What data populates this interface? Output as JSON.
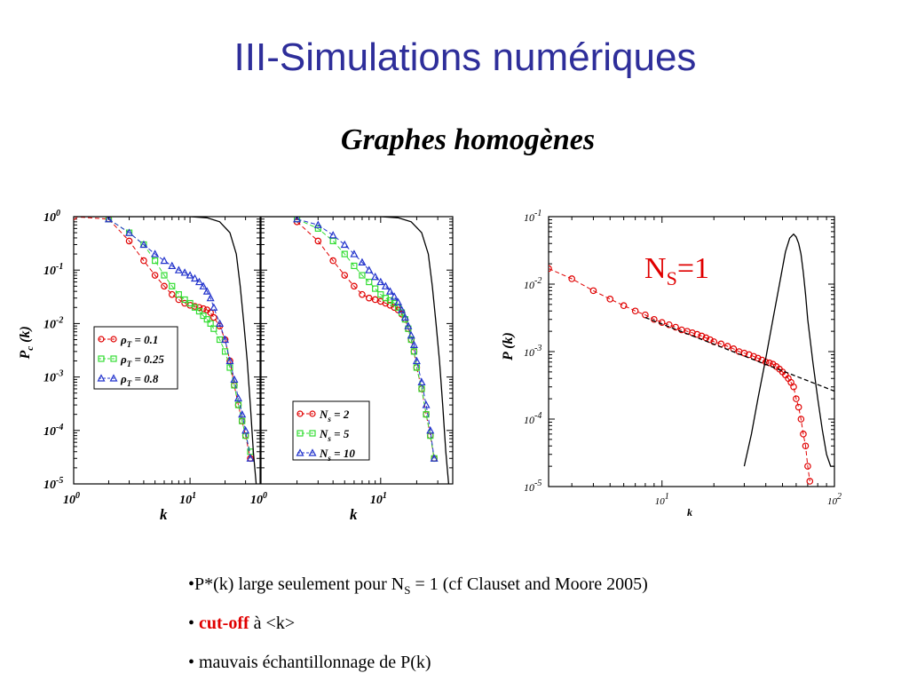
{
  "header": {
    "title": "III-Simulations numériques",
    "subtitle": "Graphes homogènes"
  },
  "colors": {
    "title": "#2e2e9a",
    "red": "#e00000",
    "green": "#33dd33",
    "blue": "#2233cc",
    "black": "#000000"
  },
  "chart_data": [
    {
      "type": "line",
      "panel": "left-a",
      "scale": "log-log",
      "ylabel": "P_c (k)",
      "xlabel": "k",
      "xlim": [
        1,
        40
      ],
      "ylim": [
        1e-05,
        1
      ],
      "x_ticks": [
        "10^0",
        "10^1"
      ],
      "y_ticks": [
        "10^0",
        "10^-1",
        "10^-2",
        "10^-3",
        "10^-4",
        "10^-5"
      ],
      "legend": [
        "ρ_T = 0.1",
        "ρ_T = 0.25",
        "ρ_T = 0.8"
      ],
      "legend_position": "middle-left",
      "series": [
        {
          "name": "ρ_T = 0.1",
          "color": "red",
          "marker": "circle",
          "x": [
            1,
            2,
            3,
            4,
            5,
            6,
            7,
            8,
            9,
            10,
            11,
            12,
            13,
            14,
            15,
            16,
            18,
            20,
            22,
            24,
            26,
            28,
            30,
            33
          ],
          "y": [
            1,
            0.9,
            0.35,
            0.15,
            0.08,
            0.05,
            0.035,
            0.028,
            0.024,
            0.022,
            0.021,
            0.02,
            0.019,
            0.018,
            0.016,
            0.013,
            0.009,
            0.005,
            0.002,
            0.0007,
            0.0003,
            0.00015,
            8e-05,
            3e-05
          ]
        },
        {
          "name": "ρ_T = 0.25",
          "color": "green",
          "marker": "square",
          "x": [
            2,
            3,
            4,
            5,
            6,
            7,
            8,
            9,
            10,
            11,
            12,
            13,
            14,
            15,
            16,
            18,
            20,
            22,
            24,
            26,
            28,
            30,
            33
          ],
          "y": [
            0.9,
            0.5,
            0.3,
            0.15,
            0.08,
            0.05,
            0.035,
            0.028,
            0.024,
            0.02,
            0.017,
            0.014,
            0.012,
            0.01,
            0.008,
            0.005,
            0.003,
            0.0015,
            0.0007,
            0.0003,
            0.00015,
            8e-05,
            4e-05
          ]
        },
        {
          "name": "ρ_T = 0.8",
          "color": "blue",
          "marker": "triangle",
          "x": [
            2,
            3,
            4,
            5,
            6,
            7,
            8,
            9,
            10,
            11,
            12,
            13,
            14,
            15,
            16,
            18,
            20,
            22,
            24,
            26,
            28,
            30,
            33
          ],
          "y": [
            0.9,
            0.5,
            0.3,
            0.2,
            0.15,
            0.12,
            0.1,
            0.09,
            0.08,
            0.07,
            0.06,
            0.05,
            0.04,
            0.03,
            0.02,
            0.01,
            0.005,
            0.002,
            0.0009,
            0.0004,
            0.0002,
            0.0001,
            3e-05
          ]
        },
        {
          "name": "",
          "color": "black",
          "marker": "none",
          "x": [
            1,
            10,
            14,
            18,
            22,
            25,
            27,
            29,
            31,
            33,
            35,
            37
          ],
          "y": [
            1,
            1,
            0.95,
            0.8,
            0.5,
            0.2,
            0.05,
            0.01,
            0.002,
            0.0003,
            4e-05,
            1e-05
          ]
        }
      ]
    },
    {
      "type": "line",
      "panel": "left-b",
      "scale": "log-log",
      "xlabel": "k",
      "xlim": [
        1,
        40
      ],
      "ylim": [
        1e-05,
        1
      ],
      "x_ticks": [
        "10^0",
        "10^1"
      ],
      "legend": [
        "N_s = 2",
        "N_s = 5",
        "N_s = 10"
      ],
      "legend_position": "bottom-left",
      "series": [
        {
          "name": "N_s = 2",
          "color": "red",
          "marker": "circle",
          "x": [
            2,
            3,
            4,
            5,
            6,
            7,
            8,
            9,
            10,
            11,
            12,
            13,
            14,
            15,
            16,
            17,
            18,
            19,
            20,
            22,
            24,
            26,
            28
          ],
          "y": [
            0.8,
            0.35,
            0.15,
            0.08,
            0.05,
            0.035,
            0.03,
            0.028,
            0.026,
            0.024,
            0.022,
            0.02,
            0.018,
            0.015,
            0.012,
            0.008,
            0.005,
            0.003,
            0.0015,
            0.0006,
            0.0002,
            8e-05,
            3e-05
          ]
        },
        {
          "name": "N_s = 5",
          "color": "green",
          "marker": "square",
          "x": [
            2,
            3,
            4,
            5,
            6,
            7,
            8,
            9,
            10,
            11,
            12,
            13,
            14,
            15,
            16,
            17,
            18,
            19,
            20,
            22,
            24,
            26,
            28
          ],
          "y": [
            0.9,
            0.6,
            0.35,
            0.2,
            0.12,
            0.08,
            0.06,
            0.045,
            0.035,
            0.03,
            0.027,
            0.024,
            0.02,
            0.016,
            0.012,
            0.008,
            0.005,
            0.003,
            0.0015,
            0.0006,
            0.0002,
            8e-05,
            3e-05
          ]
        },
        {
          "name": "N_s = 10",
          "color": "blue",
          "marker": "triangle",
          "x": [
            2,
            3,
            4,
            5,
            6,
            7,
            8,
            9,
            10,
            11,
            12,
            13,
            14,
            15,
            16,
            17,
            18,
            19,
            20,
            22,
            24,
            26,
            28
          ],
          "y": [
            0.9,
            0.7,
            0.45,
            0.3,
            0.2,
            0.14,
            0.1,
            0.075,
            0.06,
            0.05,
            0.04,
            0.032,
            0.025,
            0.018,
            0.013,
            0.009,
            0.006,
            0.004,
            0.002,
            0.0008,
            0.0003,
            0.0001,
            3e-05
          ]
        },
        {
          "name": "",
          "color": "black",
          "marker": "none",
          "x": [
            1,
            10,
            14,
            18,
            22,
            25,
            27,
            29,
            31,
            33,
            35,
            37
          ],
          "y": [
            1,
            1,
            0.95,
            0.8,
            0.5,
            0.2,
            0.05,
            0.01,
            0.002,
            0.0003,
            4e-05,
            1e-05
          ]
        }
      ]
    },
    {
      "type": "line",
      "panel": "right",
      "scale": "log-log",
      "ylabel": "P (k)",
      "xlabel": "k",
      "xlim": [
        2.2,
        100
      ],
      "ylim": [
        1e-05,
        0.1
      ],
      "x_ticks": [
        "10^1",
        "10^2"
      ],
      "y_ticks": [
        "10^-1",
        "10^-2",
        "10^-3",
        "10^-4",
        "10^-5"
      ],
      "annotation": "N_S=1",
      "series": [
        {
          "name": "",
          "color": "red",
          "marker": "circle",
          "x": [
            2.2,
            3,
            4,
            5,
            6,
            7,
            8,
            9,
            10,
            11,
            12,
            13,
            14,
            15,
            16,
            17,
            18,
            19,
            20,
            22,
            24,
            26,
            28,
            30,
            32,
            34,
            36,
            38,
            40,
            42,
            44,
            46,
            48,
            50,
            52,
            54,
            56,
            58,
            60,
            62,
            64,
            66,
            68,
            70,
            72
          ],
          "y": [
            0.017,
            0.012,
            0.008,
            0.006,
            0.0048,
            0.004,
            0.0035,
            0.003,
            0.0027,
            0.0025,
            0.0023,
            0.0021,
            0.002,
            0.0019,
            0.0018,
            0.0017,
            0.0016,
            0.0015,
            0.0014,
            0.0013,
            0.0012,
            0.0011,
            0.001,
            0.00095,
            0.0009,
            0.00085,
            0.0008,
            0.00075,
            0.0007,
            0.00068,
            0.00065,
            0.0006,
            0.00055,
            0.0005,
            0.00045,
            0.0004,
            0.00035,
            0.0003,
            0.0002,
            0.00015,
            0.0001,
            6e-05,
            4e-05,
            2e-05,
            1.2e-05
          ]
        },
        {
          "name": "",
          "color": "black",
          "dash": true,
          "marker": "none",
          "x": [
            8,
            100
          ],
          "y": [
            0.0032,
            0.00026
          ]
        },
        {
          "name": "",
          "color": "black",
          "marker": "none",
          "x": [
            30,
            33,
            36,
            40,
            44,
            48,
            52,
            55,
            58,
            60,
            62,
            64,
            66,
            68,
            70,
            75,
            80,
            85,
            90,
            95,
            100
          ],
          "y": [
            2e-05,
            6e-05,
            0.0002,
            0.0008,
            0.003,
            0.01,
            0.03,
            0.048,
            0.055,
            0.05,
            0.04,
            0.028,
            0.015,
            0.007,
            0.003,
            0.0007,
            0.0002,
            7e-05,
            3e-05,
            2e-05,
            2e-05
          ]
        }
      ]
    }
  ],
  "bullets": {
    "b1_prefix": "•P*(k) large  seulement pour  N",
    "b1_sub": "S",
    "b1_suffix": " = 1  (cf Clauset and Moore 2005)",
    "b2_prefix": "• ",
    "b2_red": "cut-off",
    "b2_suffix": " à <k>",
    "b3": "• mauvais échantillonnage de  P(k)"
  }
}
